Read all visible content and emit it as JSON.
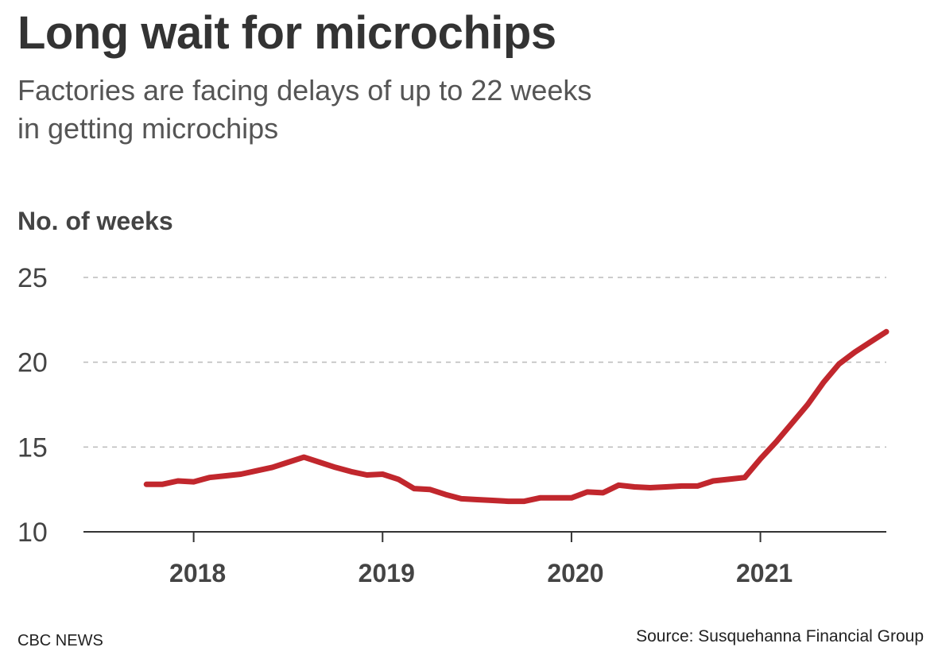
{
  "header": {
    "title": "Long wait for microchips",
    "subtitle": "Factories are facing delays of up to 22 weeks in getting microchips"
  },
  "footer": {
    "brand": "CBC NEWS",
    "source": "Source: Susquehanna Financial Group"
  },
  "colors": {
    "line": "#c1272d",
    "grid": "#bbbbbb",
    "axis": "#333333",
    "text": "#444444"
  },
  "chart_data": {
    "type": "line",
    "ylabel": "No. of weeks",
    "xlabel": "",
    "xlim": [
      "2017-06",
      "2021-09"
    ],
    "ylim": [
      10,
      25
    ],
    "yticks": [
      10,
      15,
      20,
      25
    ],
    "xticks": [
      "2018",
      "2019",
      "2020",
      "2021"
    ],
    "grid": true,
    "series": [
      {
        "x": [
          "2017-10",
          "2017-11",
          "2017-12",
          "2018-01",
          "2018-02",
          "2018-03",
          "2018-04",
          "2018-05",
          "2018-06",
          "2018-07",
          "2018-08",
          "2018-09",
          "2018-10",
          "2018-11",
          "2018-12",
          "2019-01",
          "2019-02",
          "2019-03",
          "2019-04",
          "2019-05",
          "2019-06",
          "2019-07",
          "2019-08",
          "2019-09",
          "2019-10",
          "2019-11",
          "2019-12",
          "2020-01",
          "2020-02",
          "2020-03",
          "2020-04",
          "2020-05",
          "2020-06",
          "2020-07",
          "2020-08",
          "2020-09",
          "2020-10",
          "2020-11",
          "2020-12",
          "2021-01",
          "2021-02",
          "2021-03",
          "2021-04",
          "2021-05",
          "2021-06",
          "2021-07",
          "2021-08",
          "2021-09"
        ],
        "values": [
          12.8,
          12.8,
          13.0,
          12.95,
          13.2,
          13.3,
          13.4,
          13.6,
          13.8,
          14.1,
          14.4,
          14.1,
          13.8,
          13.55,
          13.35,
          13.4,
          13.1,
          12.55,
          12.5,
          12.2,
          11.95,
          11.9,
          11.85,
          11.8,
          11.8,
          12.0,
          12.0,
          12.0,
          12.35,
          12.3,
          12.75,
          12.65,
          12.6,
          12.65,
          12.7,
          12.7,
          13.0,
          13.1,
          13.2,
          14.3,
          15.3,
          16.4,
          17.5,
          18.8,
          19.9,
          20.6,
          21.2,
          21.8
        ]
      }
    ]
  }
}
